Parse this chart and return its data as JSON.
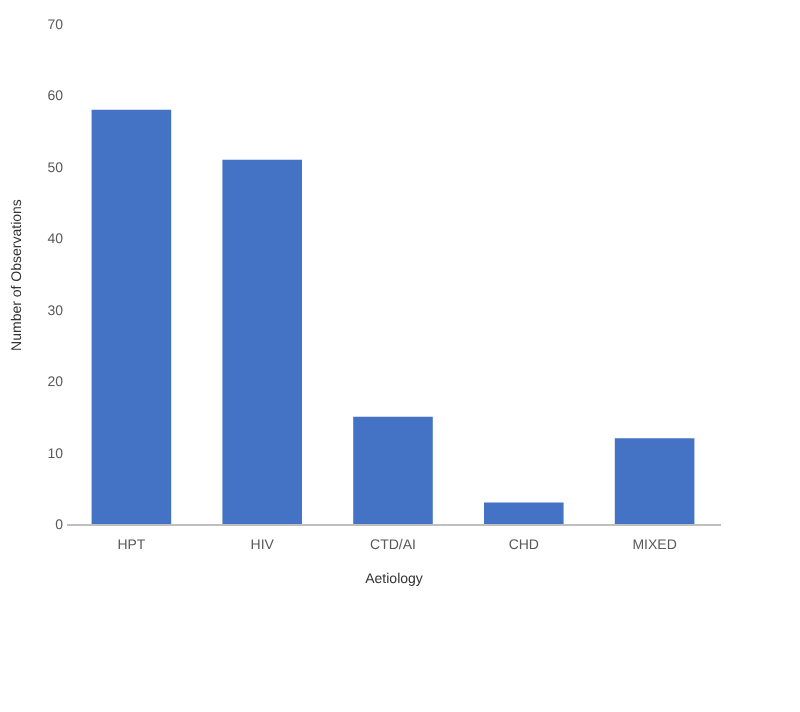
{
  "chart_data": {
    "type": "bar",
    "xlabel": "Aetiology",
    "ylabel": "Number of Observations",
    "categories": [
      "HPT",
      "HIV",
      "CTD/AI",
      "CHD",
      "MIXED"
    ],
    "values": [
      58,
      51,
      15,
      3,
      12
    ],
    "color": "#4472c4",
    "ylim": [
      0,
      70
    ],
    "yticks": [
      0,
      10,
      20,
      30,
      40,
      50,
      60,
      70
    ],
    "grid": false
  }
}
